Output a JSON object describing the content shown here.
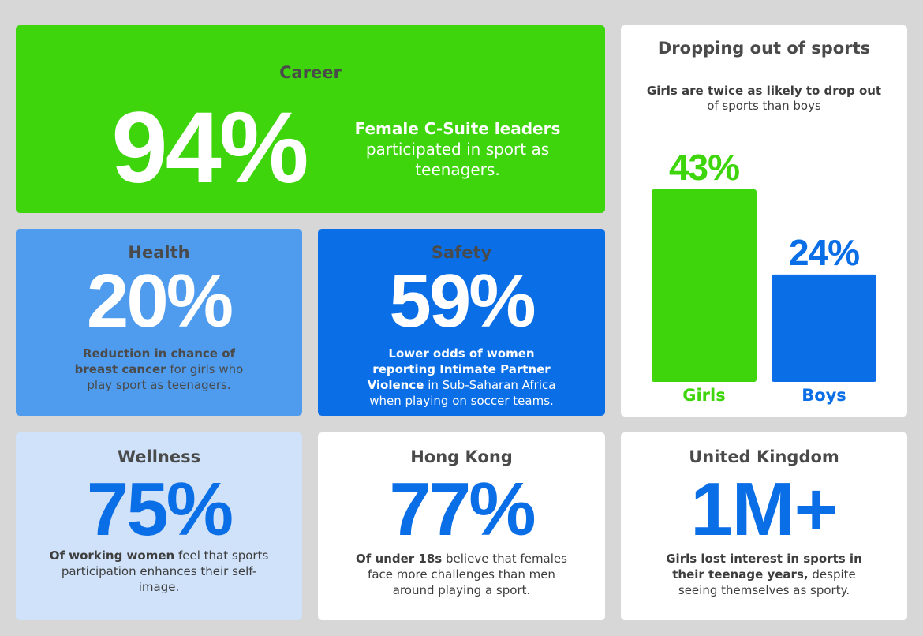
{
  "career": {
    "title": "Career",
    "stat": "94%",
    "desc_bold": "Female C-Suite leaders",
    "desc_rest": "participated in sport as teenagers."
  },
  "health": {
    "title": "Health",
    "stat": "20%",
    "desc_bold": "Reduction in chance of breast cancer",
    "desc_rest": "for girls who play sport as teenagers."
  },
  "safety": {
    "title": "Safety",
    "stat": "59%",
    "desc_bold": "Lower odds of women reporting Intimate Partner Violence",
    "desc_rest": "in Sub-Saharan Africa when playing on soccer teams."
  },
  "wellness": {
    "title": "Wellness",
    "stat": "75%",
    "desc_bold": "Of working women",
    "desc_rest": "feel that sports participation enhances their self-image."
  },
  "hongkong": {
    "title": "Hong Kong",
    "stat": "77%",
    "desc_bold": "Of under 18s",
    "desc_rest": "believe that females face more challenges than men around playing a sport."
  },
  "uk": {
    "title": "United Kingdom",
    "stat": "1M+",
    "desc_bold": "Girls lost interest in sports in their teenage years,",
    "desc_rest": "despite seeing themselves as sporty."
  },
  "colors": {
    "green": "#3ed50c",
    "blue": "#0a6ee6",
    "light_blue": "#4f9cee",
    "pale_blue": "#cfe2f9"
  },
  "chart_data": {
    "type": "bar",
    "title": "Dropping out of sports",
    "subtitle_bold": "Girls are twice as likely to drop out",
    "subtitle_rest": "of sports than boys",
    "categories": [
      "Girls",
      "Boys"
    ],
    "values": [
      43,
      24
    ],
    "value_labels": [
      "43%",
      "24%"
    ],
    "colors": [
      "#3ed50c",
      "#0a6ee6"
    ],
    "ylim": [
      0,
      43
    ],
    "grid": false,
    "legend": "none"
  }
}
